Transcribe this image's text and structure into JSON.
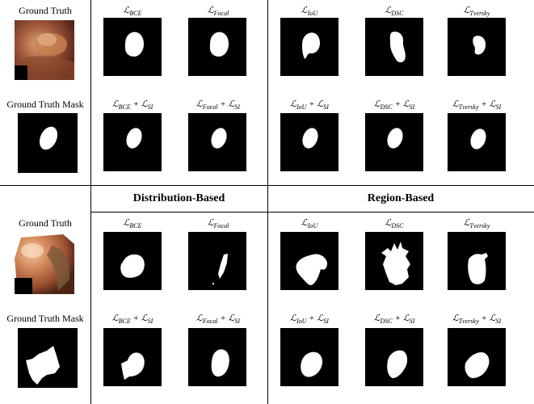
{
  "row_labels": {
    "ground_truth": "Ground Truth",
    "ground_truth_mask": "Ground Truth Mask"
  },
  "group_headings": {
    "distribution": "Distribution-Based",
    "region": "Region-Based"
  },
  "loss_labels": {
    "bce": {
      "main": "ℒ",
      "sub": "BCE",
      "suffix": ""
    },
    "focal": {
      "main": "ℒ",
      "sub": "Focal",
      "suffix": ""
    },
    "iou": {
      "main": "ℒ",
      "sub": "IoU",
      "suffix": ""
    },
    "dsc": {
      "main": "ℒ",
      "sub": "DSC",
      "suffix": ""
    },
    "tversky": {
      "main": "ℒ",
      "sub": "Tversky",
      "suffix": ""
    },
    "si": {
      "plus": "+ ℒ",
      "sub": "SI"
    }
  },
  "colors": {
    "mask_background": "#000000",
    "mask_foreground": "#ffffff",
    "grid_lines": "#000000",
    "tissue_top": "#a35a3c",
    "tissue_bottom": "#c98658"
  }
}
